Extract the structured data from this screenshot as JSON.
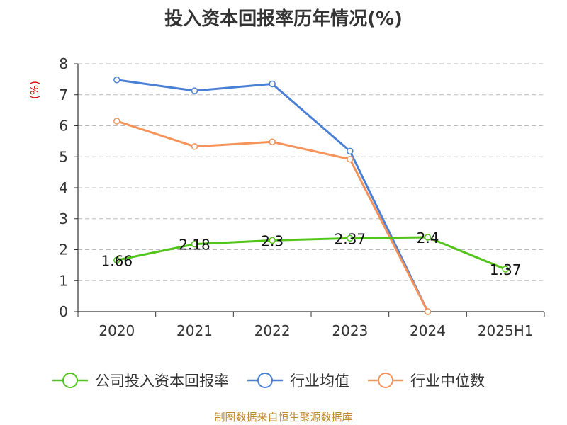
{
  "colors": {
    "company": "#52c41a",
    "industry_avg": "#4a7fd6",
    "industry_median": "#f5935a",
    "ylabel": "#d40000",
    "source": "#c08a2c",
    "grid": "#bbbbbb",
    "axis": "#333333"
  },
  "chart_data": {
    "type": "line",
    "title": "投入资本回报率历年情况(%)",
    "ylabel": "(%)",
    "xlabel": "",
    "categories": [
      "2020",
      "2021",
      "2022",
      "2023",
      "2024",
      "2025H1"
    ],
    "ylim": [
      0,
      8
    ],
    "yticks": [
      0,
      1,
      2,
      3,
      4,
      5,
      6,
      7,
      8
    ],
    "grid": true,
    "legend_position": "bottom",
    "series": [
      {
        "name": "公司投入资本回报率",
        "color_key": "company",
        "values": [
          1.66,
          2.18,
          2.3,
          2.37,
          2.4,
          1.37
        ],
        "labels": [
          "1.66",
          "2.18",
          "2.3",
          "2.37",
          "2.4",
          "1.37"
        ]
      },
      {
        "name": "行业均值",
        "color_key": "industry_avg",
        "values": [
          7.48,
          7.13,
          7.35,
          5.18,
          0,
          null
        ]
      },
      {
        "name": "行业中位数",
        "color_key": "industry_median",
        "values": [
          6.15,
          5.33,
          5.48,
          4.92,
          0,
          null
        ]
      }
    ]
  },
  "footer": {
    "source": "制图数据来自恒生聚源数据库"
  }
}
